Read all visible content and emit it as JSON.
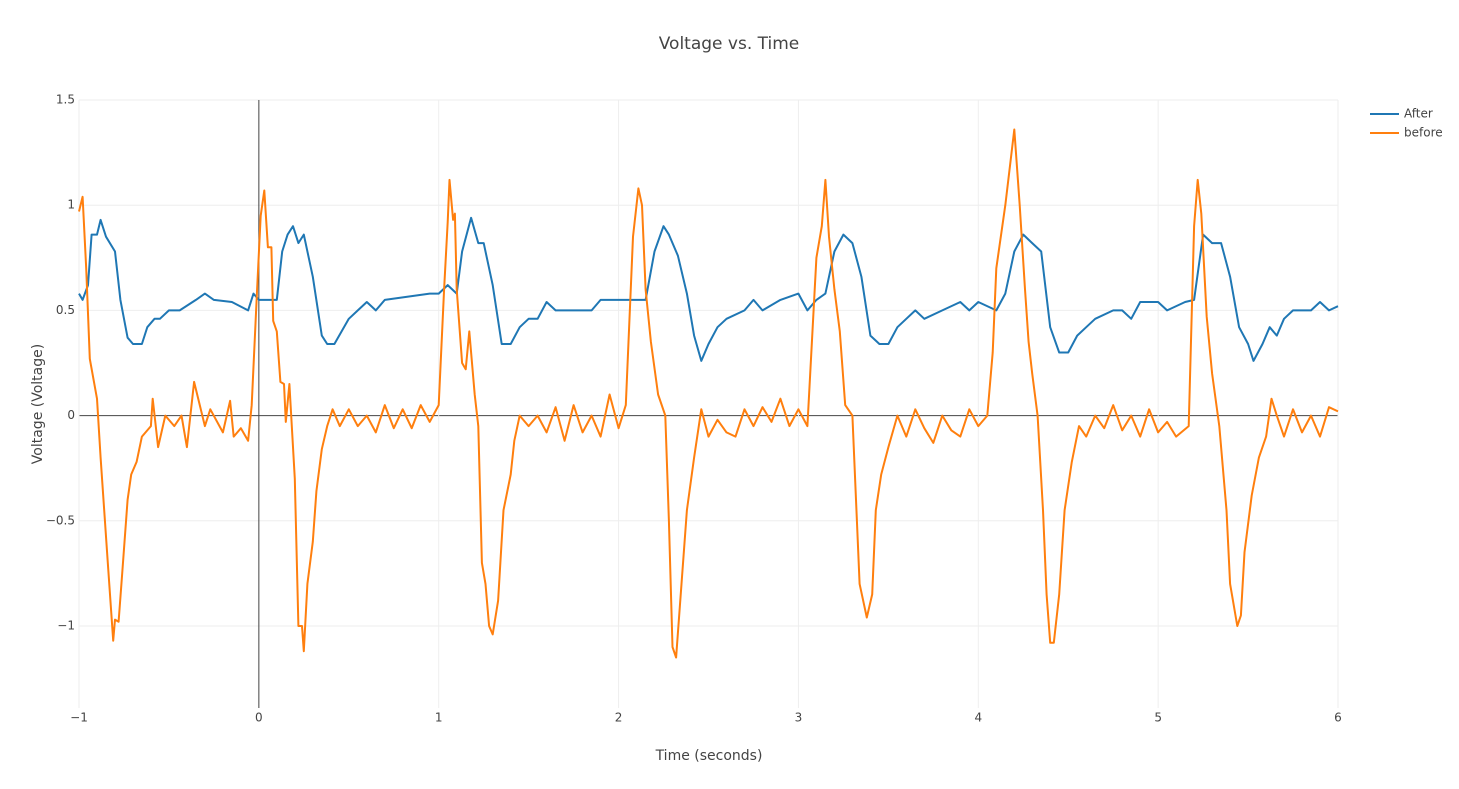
{
  "chart_data": {
    "type": "line",
    "title": "Voltage vs. Time",
    "x_label": "Time (seconds)",
    "y_label": "Voltage (Voltage)",
    "xlim": [
      -1,
      6
    ],
    "ylim": [
      -1.39,
      1.5
    ],
    "xticks": [
      {
        "value": -1,
        "label": "−1"
      },
      0,
      1,
      2,
      3,
      4,
      5,
      6
    ],
    "yticks": [
      {
        "value": -1,
        "label": "−1"
      },
      {
        "value": -0.5,
        "label": "−0.5"
      },
      0,
      0.5,
      1,
      1.5
    ],
    "grid": true,
    "zeroline": true,
    "legend": "top-right",
    "series": [
      {
        "name": "After",
        "color": "#1f77b4",
        "x": [
          -1.0,
          -0.98,
          -0.95,
          -0.93,
          -0.9,
          -0.88,
          -0.85,
          -0.8,
          -0.77,
          -0.73,
          -0.7,
          -0.65,
          -0.62,
          -0.58,
          -0.55,
          -0.5,
          -0.44,
          -0.35,
          -0.3,
          -0.25,
          -0.15,
          -0.06,
          -0.03,
          0.0,
          0.1,
          0.13,
          0.16,
          0.19,
          0.22,
          0.25,
          0.3,
          0.35,
          0.38,
          0.42,
          0.5,
          0.55,
          0.6,
          0.65,
          0.7,
          0.95,
          1.0,
          1.05,
          1.1,
          1.13,
          1.18,
          1.22,
          1.25,
          1.3,
          1.35,
          1.4,
          1.45,
          1.5,
          1.55,
          1.6,
          1.65,
          1.85,
          1.9,
          2.0,
          2.15,
          2.2,
          2.25,
          2.28,
          2.33,
          2.38,
          2.42,
          2.46,
          2.5,
          2.55,
          2.6,
          2.7,
          2.75,
          2.8,
          2.9,
          3.0,
          3.05,
          3.1,
          3.15,
          3.2,
          3.25,
          3.3,
          3.35,
          3.4,
          3.45,
          3.5,
          3.55,
          3.6,
          3.65,
          3.7,
          3.8,
          3.9,
          3.95,
          4.0,
          4.1,
          4.15,
          4.2,
          4.25,
          4.3,
          4.35,
          4.4,
          4.45,
          4.5,
          4.55,
          4.6,
          4.65,
          4.75,
          4.8,
          4.85,
          4.9,
          5.0,
          5.05,
          5.15,
          5.2,
          5.25,
          5.3,
          5.35,
          5.4,
          5.45,
          5.5,
          5.53,
          5.58,
          5.62,
          5.66,
          5.7,
          5.75,
          5.85,
          5.9,
          5.95,
          6.0
        ],
        "values": [
          0.58,
          0.55,
          0.62,
          0.86,
          0.86,
          0.93,
          0.85,
          0.78,
          0.55,
          0.37,
          0.34,
          0.34,
          0.42,
          0.46,
          0.46,
          0.5,
          0.5,
          0.55,
          0.58,
          0.55,
          0.54,
          0.5,
          0.58,
          0.55,
          0.55,
          0.78,
          0.86,
          0.9,
          0.82,
          0.86,
          0.66,
          0.38,
          0.34,
          0.34,
          0.46,
          0.5,
          0.54,
          0.5,
          0.55,
          0.58,
          0.58,
          0.62,
          0.58,
          0.78,
          0.94,
          0.82,
          0.82,
          0.62,
          0.34,
          0.34,
          0.42,
          0.46,
          0.46,
          0.54,
          0.5,
          0.5,
          0.55,
          0.55,
          0.55,
          0.78,
          0.9,
          0.86,
          0.76,
          0.58,
          0.38,
          0.26,
          0.34,
          0.42,
          0.46,
          0.5,
          0.55,
          0.5,
          0.55,
          0.58,
          0.5,
          0.55,
          0.58,
          0.78,
          0.86,
          0.82,
          0.66,
          0.38,
          0.34,
          0.34,
          0.42,
          0.46,
          0.5,
          0.46,
          0.5,
          0.54,
          0.5,
          0.54,
          0.5,
          0.58,
          0.78,
          0.86,
          0.82,
          0.78,
          0.42,
          0.3,
          0.3,
          0.38,
          0.42,
          0.46,
          0.5,
          0.5,
          0.46,
          0.54,
          0.54,
          0.5,
          0.54,
          0.55,
          0.86,
          0.82,
          0.82,
          0.66,
          0.42,
          0.34,
          0.26,
          0.34,
          0.42,
          0.38,
          0.46,
          0.5,
          0.5,
          0.54,
          0.5,
          0.52
        ]
      },
      {
        "name": "before",
        "color": "#ff7f0e",
        "x": [
          -1.0,
          -0.98,
          -0.96,
          -0.94,
          -0.9,
          -0.88,
          -0.84,
          -0.81,
          -0.8,
          -0.78,
          -0.76,
          -0.73,
          -0.71,
          -0.68,
          -0.65,
          -0.6,
          -0.59,
          -0.56,
          -0.52,
          -0.47,
          -0.43,
          -0.4,
          -0.36,
          -0.3,
          -0.27,
          -0.2,
          -0.16,
          -0.14,
          -0.1,
          -0.06,
          -0.04,
          -0.01,
          0.01,
          0.03,
          0.05,
          0.07,
          0.08,
          0.1,
          0.12,
          0.14,
          0.15,
          0.17,
          0.2,
          0.22,
          0.24,
          0.25,
          0.27,
          0.3,
          0.32,
          0.35,
          0.38,
          0.41,
          0.45,
          0.5,
          0.55,
          0.6,
          0.65,
          0.7,
          0.75,
          0.8,
          0.85,
          0.9,
          0.95,
          1.0,
          1.03,
          1.05,
          1.06,
          1.08,
          1.09,
          1.1,
          1.13,
          1.15,
          1.17,
          1.2,
          1.22,
          1.24,
          1.26,
          1.28,
          1.3,
          1.33,
          1.36,
          1.4,
          1.42,
          1.45,
          1.5,
          1.55,
          1.6,
          1.65,
          1.7,
          1.75,
          1.8,
          1.85,
          1.9,
          1.95,
          2.0,
          2.04,
          2.08,
          2.11,
          2.13,
          2.15,
          2.18,
          2.22,
          2.26,
          2.28,
          2.3,
          2.32,
          2.35,
          2.38,
          2.42,
          2.46,
          2.5,
          2.55,
          2.6,
          2.65,
          2.7,
          2.75,
          2.8,
          2.85,
          2.9,
          2.95,
          3.0,
          3.05,
          3.1,
          3.13,
          3.15,
          3.17,
          3.2,
          3.23,
          3.26,
          3.3,
          3.32,
          3.34,
          3.38,
          3.41,
          3.43,
          3.46,
          3.5,
          3.55,
          3.6,
          3.65,
          3.7,
          3.75,
          3.8,
          3.85,
          3.9,
          3.95,
          4.0,
          4.05,
          4.08,
          4.1,
          4.15,
          4.2,
          4.23,
          4.26,
          4.28,
          4.3,
          4.33,
          4.36,
          4.38,
          4.4,
          4.42,
          4.45,
          4.48,
          4.52,
          4.56,
          4.6,
          4.65,
          4.7,
          4.75,
          4.8,
          4.85,
          4.9,
          4.95,
          5.0,
          5.05,
          5.1,
          5.17,
          5.2,
          5.22,
          5.24,
          5.27,
          5.3,
          5.34,
          5.38,
          5.4,
          5.44,
          5.46,
          5.48,
          5.52,
          5.56,
          5.6,
          5.63,
          5.66,
          5.7,
          5.75,
          5.8,
          5.85,
          5.9,
          5.95,
          6.0
        ],
        "values": [
          0.97,
          1.04,
          0.7,
          0.27,
          0.08,
          -0.2,
          -0.7,
          -1.07,
          -0.97,
          -0.98,
          -0.75,
          -0.4,
          -0.28,
          -0.22,
          -0.1,
          -0.05,
          0.08,
          -0.15,
          0.0,
          -0.05,
          0.0,
          -0.15,
          0.16,
          -0.05,
          0.03,
          -0.08,
          0.07,
          -0.1,
          -0.06,
          -0.12,
          0.05,
          0.6,
          0.95,
          1.07,
          0.8,
          0.8,
          0.45,
          0.4,
          0.16,
          0.15,
          -0.03,
          0.15,
          -0.3,
          -1.0,
          -1.0,
          -1.12,
          -0.8,
          -0.6,
          -0.36,
          -0.16,
          -0.05,
          0.03,
          -0.05,
          0.03,
          -0.05,
          0.0,
          -0.08,
          0.05,
          -0.06,
          0.03,
          -0.06,
          0.05,
          -0.03,
          0.05,
          0.6,
          0.92,
          1.12,
          0.93,
          0.96,
          0.6,
          0.25,
          0.22,
          0.4,
          0.1,
          -0.05,
          -0.7,
          -0.8,
          -1.0,
          -1.04,
          -0.88,
          -0.45,
          -0.28,
          -0.12,
          0.0,
          -0.05,
          0.0,
          -0.08,
          0.04,
          -0.12,
          0.05,
          -0.08,
          0.0,
          -0.1,
          0.1,
          -0.06,
          0.05,
          0.85,
          1.08,
          1.0,
          0.6,
          0.35,
          0.1,
          0.0,
          -0.5,
          -1.1,
          -1.15,
          -0.8,
          -0.45,
          -0.2,
          0.03,
          -0.1,
          -0.02,
          -0.08,
          -0.1,
          0.03,
          -0.05,
          0.04,
          -0.03,
          0.08,
          -0.05,
          0.03,
          -0.05,
          0.75,
          0.9,
          1.12,
          0.85,
          0.6,
          0.4,
          0.05,
          0.0,
          -0.4,
          -0.8,
          -0.96,
          -0.85,
          -0.45,
          -0.28,
          -0.15,
          0.0,
          -0.1,
          0.03,
          -0.06,
          -0.13,
          0.0,
          -0.07,
          -0.1,
          0.03,
          -0.05,
          0.0,
          0.3,
          0.7,
          1.0,
          1.36,
          1.0,
          0.6,
          0.35,
          0.2,
          0.0,
          -0.45,
          -0.85,
          -1.08,
          -1.08,
          -0.85,
          -0.45,
          -0.22,
          -0.05,
          -0.1,
          0.0,
          -0.06,
          0.05,
          -0.07,
          0.0,
          -0.1,
          0.03,
          -0.08,
          -0.03,
          -0.1,
          -0.05,
          0.9,
          1.12,
          0.96,
          0.47,
          0.2,
          -0.05,
          -0.45,
          -0.8,
          -1.0,
          -0.95,
          -0.65,
          -0.38,
          -0.2,
          -0.1,
          0.08,
          0.0,
          -0.1,
          0.03,
          -0.08,
          0.0,
          -0.1,
          0.04,
          0.02
        ]
      }
    ]
  }
}
